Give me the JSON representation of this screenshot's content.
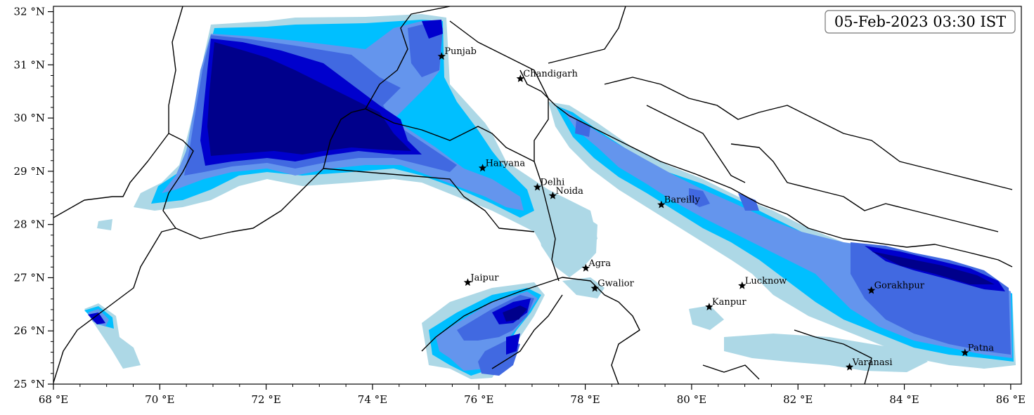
{
  "map": {
    "timestamp": "05-Feb-2023 03:30 IST",
    "lon_range": [
      68,
      86.2
    ],
    "lat_range": [
      25,
      32.1
    ],
    "colors": {
      "level1": "#add8e6",
      "level2": "#00bfff",
      "level3": "#6495ed",
      "level4": "#4169e1",
      "level5": "#0000cd",
      "level6": "#00008b"
    },
    "x_ticks": [
      {
        "value": 68,
        "label": "68 °E"
      },
      {
        "value": 70,
        "label": "70 °E"
      },
      {
        "value": 72,
        "label": "72 °E"
      },
      {
        "value": 74,
        "label": "74 °E"
      },
      {
        "value": 76,
        "label": "76 °E"
      },
      {
        "value": 78,
        "label": "78 °E"
      },
      {
        "value": 80,
        "label": "80 °E"
      },
      {
        "value": 82,
        "label": "82 °E"
      },
      {
        "value": 84,
        "label": "84 °E"
      },
      {
        "value": 86,
        "label": "86 °E"
      }
    ],
    "y_ticks": [
      {
        "value": 25,
        "label": "25 °N"
      },
      {
        "value": 26,
        "label": "26 °N"
      },
      {
        "value": 27,
        "label": "27 °N"
      },
      {
        "value": 28,
        "label": "28 °N"
      },
      {
        "value": 29,
        "label": "29 °N"
      },
      {
        "value": 30,
        "label": "30 °N"
      },
      {
        "value": 31,
        "label": "31 °N"
      },
      {
        "value": 32,
        "label": "32 °N"
      }
    ],
    "cities": [
      {
        "name": "Punjab",
        "lon": 75.3,
        "lat": 31.16
      },
      {
        "name": "Chandigarh",
        "lon": 76.78,
        "lat": 30.74
      },
      {
        "name": "Haryana",
        "lon": 76.07,
        "lat": 29.06
      },
      {
        "name": "Delhi",
        "lon": 77.1,
        "lat": 28.7
      },
      {
        "name": "Noida",
        "lon": 77.39,
        "lat": 28.54
      },
      {
        "name": "Bareilly",
        "lon": 79.43,
        "lat": 28.37
      },
      {
        "name": "Agra",
        "lon": 78.01,
        "lat": 27.18
      },
      {
        "name": "Jaipur",
        "lon": 75.79,
        "lat": 26.91
      },
      {
        "name": "Gwalior",
        "lon": 78.18,
        "lat": 26.8
      },
      {
        "name": "Lucknow",
        "lon": 80.95,
        "lat": 26.85
      },
      {
        "name": "Kanpur",
        "lon": 80.33,
        "lat": 26.45
      },
      {
        "name": "Gorakhpur",
        "lon": 83.38,
        "lat": 26.76
      },
      {
        "name": "Varanasi",
        "lon": 82.97,
        "lat": 25.32
      },
      {
        "name": "Patna",
        "lon": 85.14,
        "lat": 25.59
      }
    ]
  }
}
